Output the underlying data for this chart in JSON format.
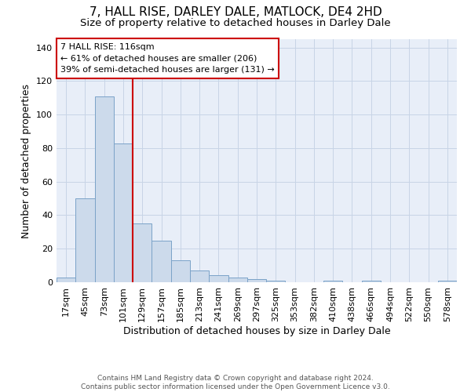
{
  "title": "7, HALL RISE, DARLEY DALE, MATLOCK, DE4 2HD",
  "subtitle": "Size of property relative to detached houses in Darley Dale",
  "xlabel": "Distribution of detached houses by size in Darley Dale",
  "ylabel": "Number of detached properties",
  "categories": [
    "17sqm",
    "45sqm",
    "73sqm",
    "101sqm",
    "129sqm",
    "157sqm",
    "185sqm",
    "213sqm",
    "241sqm",
    "269sqm",
    "297sqm",
    "325sqm",
    "353sqm",
    "382sqm",
    "410sqm",
    "438sqm",
    "466sqm",
    "494sqm",
    "522sqm",
    "550sqm",
    "578sqm"
  ],
  "values": [
    3,
    50,
    111,
    83,
    35,
    25,
    13,
    7,
    4,
    3,
    2,
    1,
    0,
    0,
    1,
    0,
    1,
    0,
    0,
    0,
    1
  ],
  "bar_color": "#ccdaeb",
  "bar_edge_color": "#7ba3c8",
  "grid_color": "#c8d4e6",
  "background_color": "#e8eef8",
  "vline_color": "#cc0000",
  "annotation_text": "7 HALL RISE: 116sqm\n← 61% of detached houses are smaller (206)\n39% of semi-detached houses are larger (131) →",
  "annotation_box_color": "#ffffff",
  "annotation_box_edge": "#cc0000",
  "ylim": [
    0,
    145
  ],
  "yticks": [
    0,
    20,
    40,
    60,
    80,
    100,
    120,
    140
  ],
  "footer": "Contains HM Land Registry data © Crown copyright and database right 2024.\nContains public sector information licensed under the Open Government Licence v3.0.",
  "title_fontsize": 11,
  "subtitle_fontsize": 9.5,
  "tick_fontsize": 8,
  "ylabel_fontsize": 9,
  "xlabel_fontsize": 9,
  "annotation_fontsize": 8,
  "footer_fontsize": 6.5
}
